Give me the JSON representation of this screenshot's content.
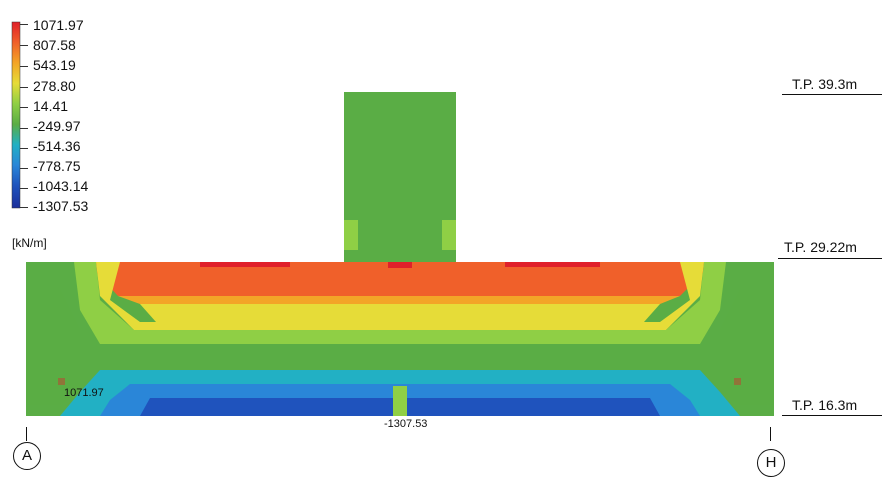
{
  "legend": {
    "values": [
      "1071.97",
      "807.58",
      "543.19",
      "278.80",
      "14.41",
      "-249.97",
      "-514.36",
      "-778.75",
      "-1043.14",
      "-1307.53"
    ],
    "colors": [
      "#e0202a",
      "#f0602a",
      "#f3a527",
      "#e6dc38",
      "#8fcf45",
      "#5aad45",
      "#22b0c4",
      "#2a86d8",
      "#1f53bd",
      "#1c2f9a"
    ],
    "unit": "[kN/m]"
  },
  "levels": [
    {
      "label": "T.P. 39.3m"
    },
    {
      "label": "T.P. 29.22m"
    },
    {
      "label": "T.P. 16.3m"
    }
  ],
  "annotations": {
    "max_value": "1071.97",
    "min_value": "-1307.53"
  },
  "axes": {
    "left": "A",
    "right": "H"
  }
}
